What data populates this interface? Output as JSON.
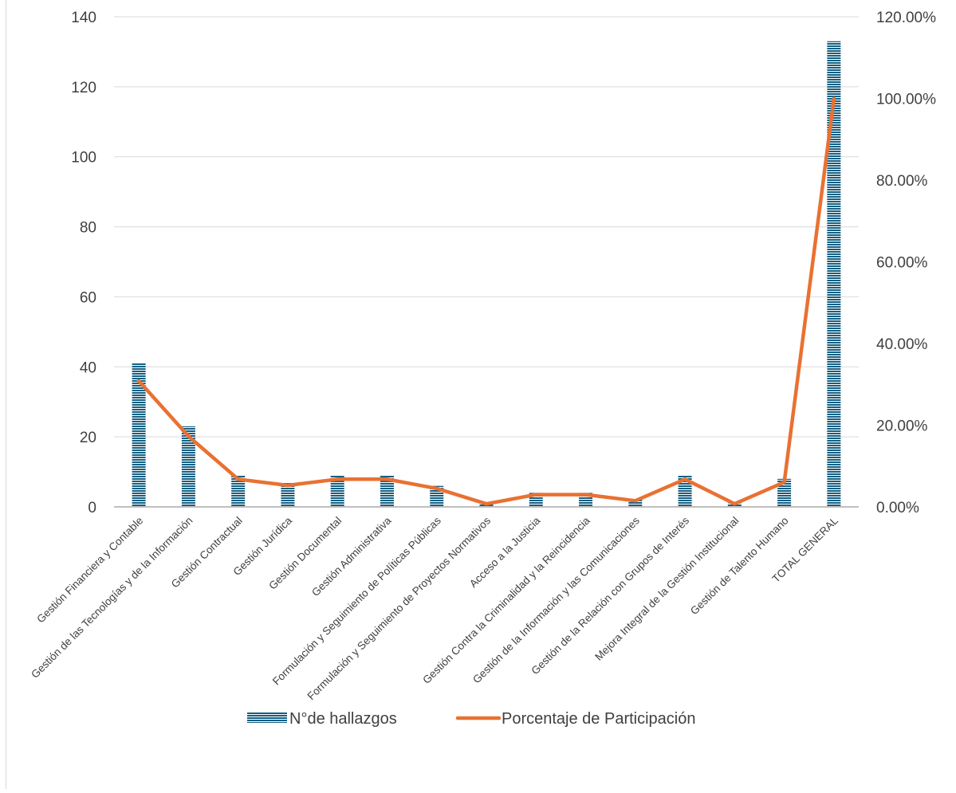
{
  "chart_data": {
    "type": "bar",
    "categories": [
      "Gestión Financiera y Contable",
      "Gestión de las Tecnologías y de la Información",
      "Gestión Contractual",
      "Gestión Jurídica",
      "Gestión Documental",
      "Gestión Administrativa",
      "Formulación y Seguimiento de Políticas Públicas",
      "Formulación y Seguimiento de Proyectos Normativos",
      "Acceso a la Justicia",
      "Gestión Contra la Criminalidad y la Reincidencia",
      "Gestión de la Información y las Comunicaciones",
      "Gestión de la Relación con Grupos de Interés",
      "Mejora Integral de la Gestión Institucional",
      "Gestión de Talento Humano",
      "TOTAL GENERAL"
    ],
    "series": [
      {
        "name": "N°de hallazgos",
        "type": "bar",
        "axis": "left",
        "values": [
          41,
          23,
          9,
          7,
          9,
          9,
          6,
          1,
          4,
          4,
          2,
          9,
          1,
          8,
          133
        ]
      },
      {
        "name": "Porcentaje de Participación",
        "type": "line",
        "axis": "right",
        "values": [
          30.83,
          17.29,
          6.77,
          5.26,
          6.77,
          6.77,
          4.51,
          0.75,
          3.01,
          3.01,
          1.5,
          6.77,
          0.75,
          6.02,
          100.0
        ]
      }
    ],
    "y_left": {
      "min": 0,
      "max": 140,
      "ticks": [
        "0",
        "20",
        "40",
        "60",
        "80",
        "100",
        "120",
        "140"
      ]
    },
    "y_right": {
      "min": 0,
      "max": 120,
      "ticks": [
        "0.00%",
        "20.00%",
        "40.00%",
        "60.00%",
        "80.00%",
        "100.00%",
        "120.00%"
      ]
    },
    "grid": true,
    "legend_position": "bottom",
    "colors": {
      "bar": "#156082",
      "bar_stripe": "#ffffff",
      "line": "#e97132",
      "grid": "#d9d9d9",
      "axis": "#bfbfbf",
      "text": "#404040"
    }
  }
}
